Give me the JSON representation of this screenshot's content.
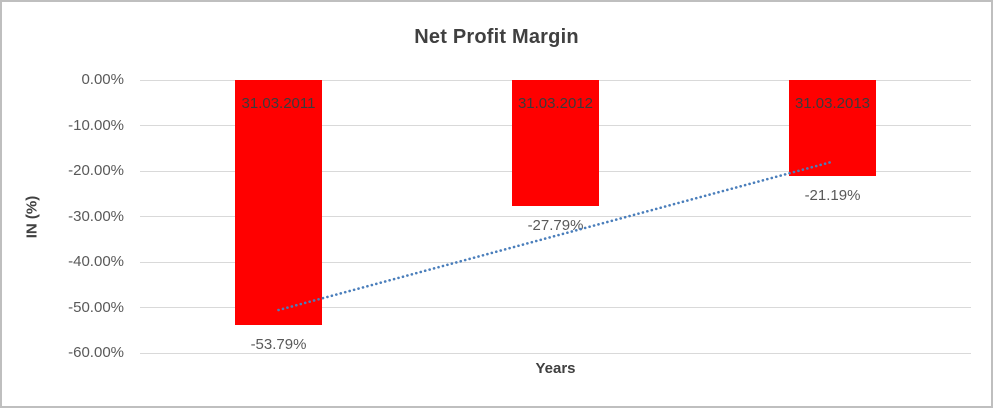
{
  "window": {
    "background": "#ffffff",
    "border_color": "#bfbfbf"
  },
  "chart_data": {
    "type": "bar",
    "title": "Net Profit Margin",
    "categories": [
      "31.03.2011",
      "31.03.2012",
      "31.03.2013"
    ],
    "values": [
      -53.79,
      -27.79,
      -21.19
    ],
    "data_labels": [
      "-53.79%",
      "-27.79%",
      "-21.19%"
    ],
    "xlabel": "Years",
    "ylabel": "IN (%)",
    "ylim": [
      -60,
      0
    ],
    "yticks": [
      "0.00%",
      "-10.00%",
      "-20.00%",
      "-30.00%",
      "-40.00%",
      "-50.00%",
      "-60.00%"
    ],
    "grid": true,
    "legend": "none",
    "bar_color": "#ff0000",
    "bar_label_color": "#3b3b3b",
    "gridline_color": "#d9d9d9",
    "title_color": "#404040",
    "tick_color": "#595959",
    "trendline": {
      "type": "linear",
      "style": "dotted",
      "color": "#4a7ebb",
      "endpoint_values": [
        -50.56,
        -17.96
      ]
    }
  }
}
